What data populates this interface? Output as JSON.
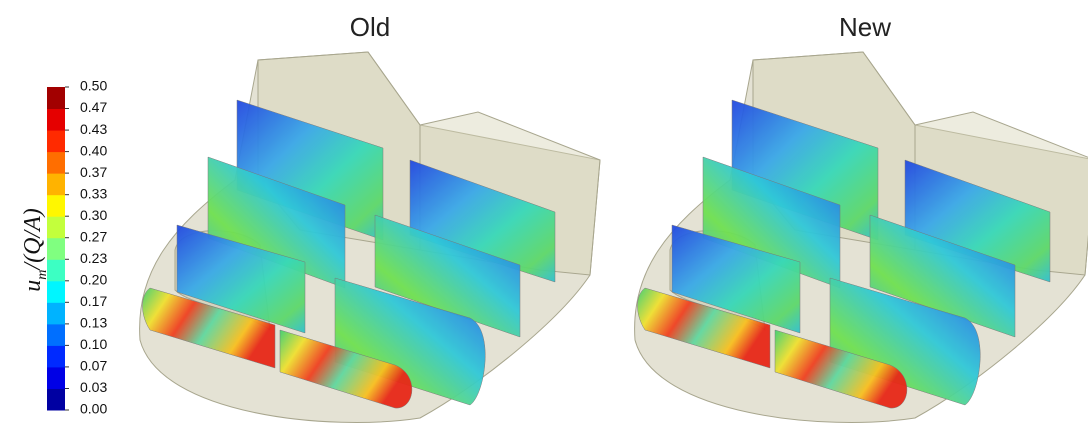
{
  "figure": {
    "panels": [
      {
        "title": "Old"
      },
      {
        "title": "New"
      }
    ],
    "colorbar": {
      "label_main": "u",
      "label_sub": "m",
      "label_rest": "/(Q/A)",
      "lim": [
        0,
        0.5
      ],
      "ticks": [
        {
          "value": 0,
          "label": "0.00"
        },
        {
          "value": 0.0333,
          "label": "0.03"
        },
        {
          "value": 0.0667,
          "label": "0.07"
        },
        {
          "value": 0.1,
          "label": "0.10"
        },
        {
          "value": 0.1333,
          "label": "0.13"
        },
        {
          "value": 0.1667,
          "label": "0.17"
        },
        {
          "value": 0.2,
          "label": "0.20"
        },
        {
          "value": 0.2333,
          "label": "0.23"
        },
        {
          "value": 0.2667,
          "label": "0.27"
        },
        {
          "value": 0.3,
          "label": "0.30"
        },
        {
          "value": 0.3333,
          "label": "0.33"
        },
        {
          "value": 0.3667,
          "label": "0.37"
        },
        {
          "value": 0.4,
          "label": "0.40"
        },
        {
          "value": 0.4333,
          "label": "0.43"
        },
        {
          "value": 0.4667,
          "label": "0.47"
        },
        {
          "value": 0.5,
          "label": "0.50"
        }
      ]
    }
  }
}
